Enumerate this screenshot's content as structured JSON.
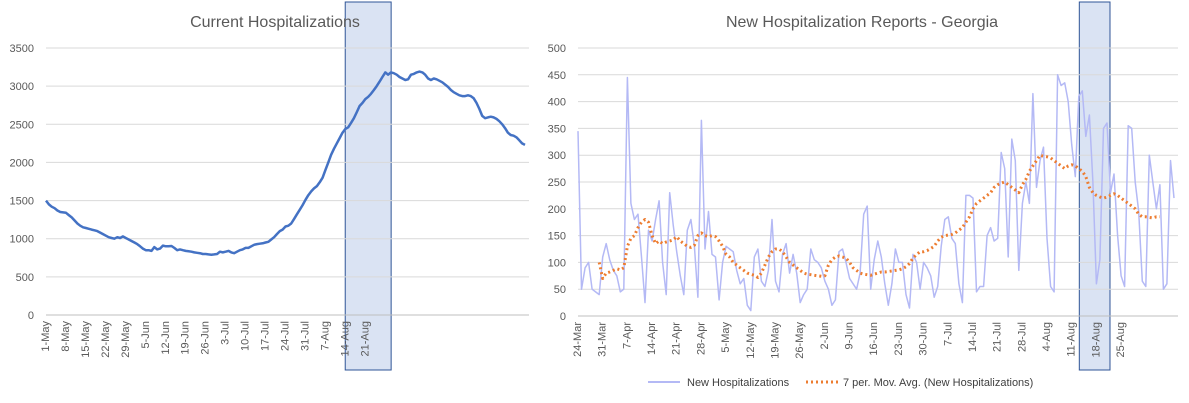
{
  "chart_data": [
    {
      "type": "line",
      "title": "Current Hospitalizations",
      "xlabel": "",
      "ylabel": "",
      "ylim": [
        0,
        3500
      ],
      "yticks": [
        0,
        500,
        1000,
        1500,
        2000,
        2500,
        3000,
        3500
      ],
      "grid": true,
      "legend": "none",
      "x_start": "1-May",
      "x_ticks": [
        "1-May",
        "8-May",
        "15-May",
        "22-May",
        "29-May",
        "5-Jun",
        "12-Jun",
        "19-Jun",
        "26-Jun",
        "3-Jul",
        "10-Jul",
        "17-Jul",
        "24-Jul",
        "31-Jul",
        "7-Aug",
        "14-Aug",
        "21-Aug"
      ],
      "highlight": {
        "from_day": 106,
        "to_day": 120,
        "color": "#dae3f3",
        "border": "#2f5597"
      },
      "line_color": "#4472c4",
      "series": [
        {
          "values": [
            1500,
            1450,
            1420,
            1400,
            1370,
            1350,
            1345,
            1340,
            1310,
            1280,
            1240,
            1200,
            1170,
            1150,
            1140,
            1130,
            1120,
            1110,
            1100,
            1080,
            1060,
            1040,
            1020,
            1010,
            1000,
            1020,
            1010,
            1030,
            1010,
            990,
            970,
            950,
            930,
            900,
            870,
            850,
            850,
            840,
            890,
            860,
            870,
            910,
            900,
            900,
            905,
            880,
            850,
            860,
            850,
            840,
            835,
            830,
            820,
            815,
            810,
            800,
            800,
            795,
            790,
            795,
            800,
            830,
            820,
            830,
            840,
            820,
            810,
            830,
            850,
            860,
            880,
            880,
            900,
            920,
            930,
            935,
            940,
            950,
            960,
            990,
            1020,
            1060,
            1100,
            1120,
            1160,
            1170,
            1200,
            1260,
            1320,
            1380,
            1440,
            1510,
            1570,
            1620,
            1660,
            1690,
            1740,
            1800,
            1900,
            2000,
            2100,
            2180,
            2250,
            2320,
            2390,
            2440,
            2460,
            2520,
            2580,
            2660,
            2740,
            2780,
            2830,
            2860,
            2900,
            2950,
            3000,
            3060,
            3120,
            3180,
            3150,
            3180,
            3170,
            3150,
            3120,
            3100,
            3080,
            3090,
            3150,
            3160,
            3180,
            3190,
            3180,
            3150,
            3100,
            3080,
            3100,
            3090,
            3070,
            3050,
            3020,
            2990,
            2950,
            2920,
            2900,
            2880,
            2870,
            2870,
            2880,
            2870,
            2840,
            2780,
            2700,
            2610,
            2580,
            2590,
            2600,
            2590,
            2570,
            2540,
            2500,
            2450,
            2390,
            2360,
            2350,
            2330,
            2290,
            2250,
            2230
          ]
        }
      ]
    },
    {
      "type": "line",
      "title": "New Hospitalization Reports - Georgia",
      "xlabel": "",
      "ylabel": "",
      "ylim": [
        0,
        500
      ],
      "yticks": [
        0,
        50,
        100,
        150,
        200,
        250,
        300,
        350,
        400,
        450,
        500
      ],
      "grid": true,
      "legend": "bottom",
      "x_start": "24-Mar",
      "x_ticks": [
        "24-Mar",
        "31-Mar",
        "7-Apr",
        "14-Apr",
        "21-Apr",
        "28-Apr",
        "5-May",
        "12-May",
        "19-May",
        "26-May",
        "2-Jun",
        "9-Jun",
        "16-Jun",
        "23-Jun",
        "30-Jun",
        "7-Jul",
        "14-Jul",
        "21-Jul",
        "28-Jul",
        "4-Aug",
        "11-Aug",
        "18-Aug",
        "25-Aug"
      ],
      "highlight": {
        "from_day": 143,
        "to_day": 150,
        "color": "#dae3f3",
        "border": "#2f5597"
      },
      "series": [
        {
          "name": "New Hospitalizations",
          "color": "#b4b9f5",
          "style": "solid",
          "values": [
            345,
            50,
            90,
            100,
            50,
            45,
            40,
            110,
            135,
            105,
            85,
            75,
            45,
            50,
            445,
            210,
            180,
            190,
            110,
            25,
            160,
            140,
            180,
            215,
            100,
            40,
            230,
            170,
            120,
            75,
            40,
            160,
            180,
            130,
            35,
            365,
            125,
            195,
            115,
            110,
            30,
            100,
            130,
            125,
            120,
            85,
            60,
            70,
            20,
            10,
            110,
            125,
            65,
            55,
            85,
            180,
            65,
            45,
            115,
            135,
            80,
            115,
            80,
            25,
            40,
            50,
            125,
            105,
            100,
            90,
            65,
            50,
            20,
            30,
            120,
            125,
            100,
            70,
            60,
            50,
            80,
            190,
            205,
            50,
            105,
            140,
            110,
            60,
            20,
            60,
            125,
            100,
            100,
            40,
            15,
            115,
            100,
            50,
            100,
            90,
            75,
            35,
            55,
            130,
            180,
            185,
            145,
            135,
            60,
            25,
            225,
            225,
            220,
            45,
            55,
            55,
            150,
            165,
            140,
            145,
            305,
            275,
            110,
            330,
            290,
            85,
            210,
            250,
            210,
            415,
            240,
            290,
            315,
            145,
            55,
            45,
            450,
            430,
            435,
            400,
            320,
            260,
            410,
            420,
            335,
            375,
            250,
            60,
            105,
            350,
            360,
            230,
            265,
            150,
            75,
            55,
            355,
            350,
            250,
            195,
            65,
            55,
            300,
            250,
            200,
            245,
            50,
            60,
            290,
            220
          ]
        },
        {
          "name": "7 per. Mov. Avg. (New Hospitalizations)",
          "color": "#ed7d31",
          "style": "dotted",
          "values": [
            null,
            null,
            null,
            null,
            null,
            null,
            100,
            70,
            80,
            82,
            85,
            88,
            86,
            90,
            130,
            145,
            150,
            165,
            175,
            180,
            175,
            150,
            135,
            140,
            135,
            138,
            140,
            142,
            148,
            140,
            135,
            130,
            128,
            132,
            150,
            155,
            150,
            148,
            150,
            148,
            140,
            130,
            115,
            110,
            100,
            95,
            90,
            85,
            80,
            78,
            76,
            72,
            80,
            95,
            110,
            120,
            125,
            125,
            120,
            110,
            100,
            95,
            90,
            85,
            80,
            78,
            77,
            76,
            75,
            74,
            75,
            95,
            105,
            110,
            112,
            110,
            108,
            100,
            90,
            85,
            80,
            78,
            77,
            76,
            78,
            80,
            82,
            82,
            83,
            84,
            85,
            86,
            88,
            92,
            98,
            108,
            115,
            120,
            120,
            122,
            126,
            130,
            140,
            147,
            150,
            151,
            152,
            155,
            160,
            165,
            175,
            185,
            200,
            210,
            215,
            220,
            225,
            230,
            240,
            245,
            248,
            250,
            245,
            240,
            235,
            230,
            245,
            255,
            270,
            280,
            290,
            300,
            298,
            297,
            295,
            290,
            285,
            280,
            275,
            280,
            282,
            280,
            275,
            270,
            260,
            240,
            230,
            225,
            222,
            220,
            222,
            225,
            228,
            225,
            220,
            215,
            210,
            205,
            200,
            190,
            185,
            185,
            184,
            183,
            185,
            185
          ]
        }
      ]
    }
  ]
}
